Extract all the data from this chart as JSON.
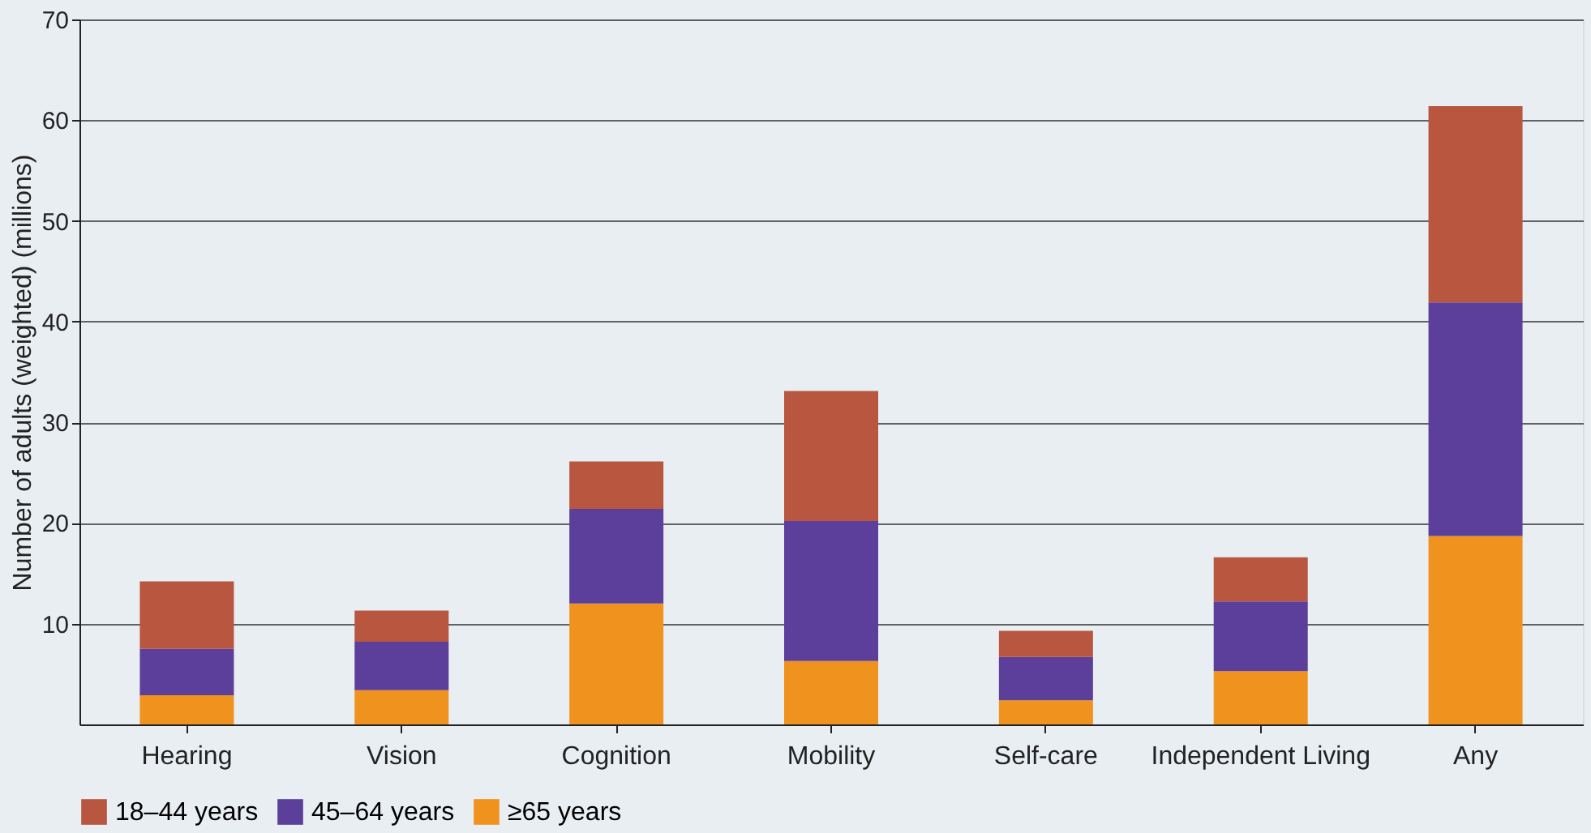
{
  "chart_data": {
    "type": "bar",
    "stacked": true,
    "ylabel": "Number of adults (weighted) (millions)",
    "categories": [
      "Hearing",
      "Vision",
      "Cognition",
      "Mobility",
      "Self-care",
      "Independent Living",
      "Any"
    ],
    "series": [
      {
        "name": "≥65 years",
        "color": "#f0921e",
        "values": [
          2.9,
          3.4,
          12.0,
          6.3,
          2.4,
          5.3,
          18.7
        ]
      },
      {
        "name": "45–64 years",
        "color": "#5b3f9a",
        "values": [
          4.6,
          4.8,
          9.4,
          13.9,
          4.3,
          6.9,
          23.2
        ]
      },
      {
        "name": "18–44 years",
        "color": "#b85640",
        "values": [
          6.7,
          3.1,
          4.7,
          12.9,
          2.6,
          4.4,
          19.5
        ]
      }
    ],
    "ylim": [
      0,
      70
    ],
    "yticks": [
      10,
      20,
      30,
      40,
      50,
      60,
      70
    ],
    "grid": "y",
    "legend": "bottom"
  }
}
